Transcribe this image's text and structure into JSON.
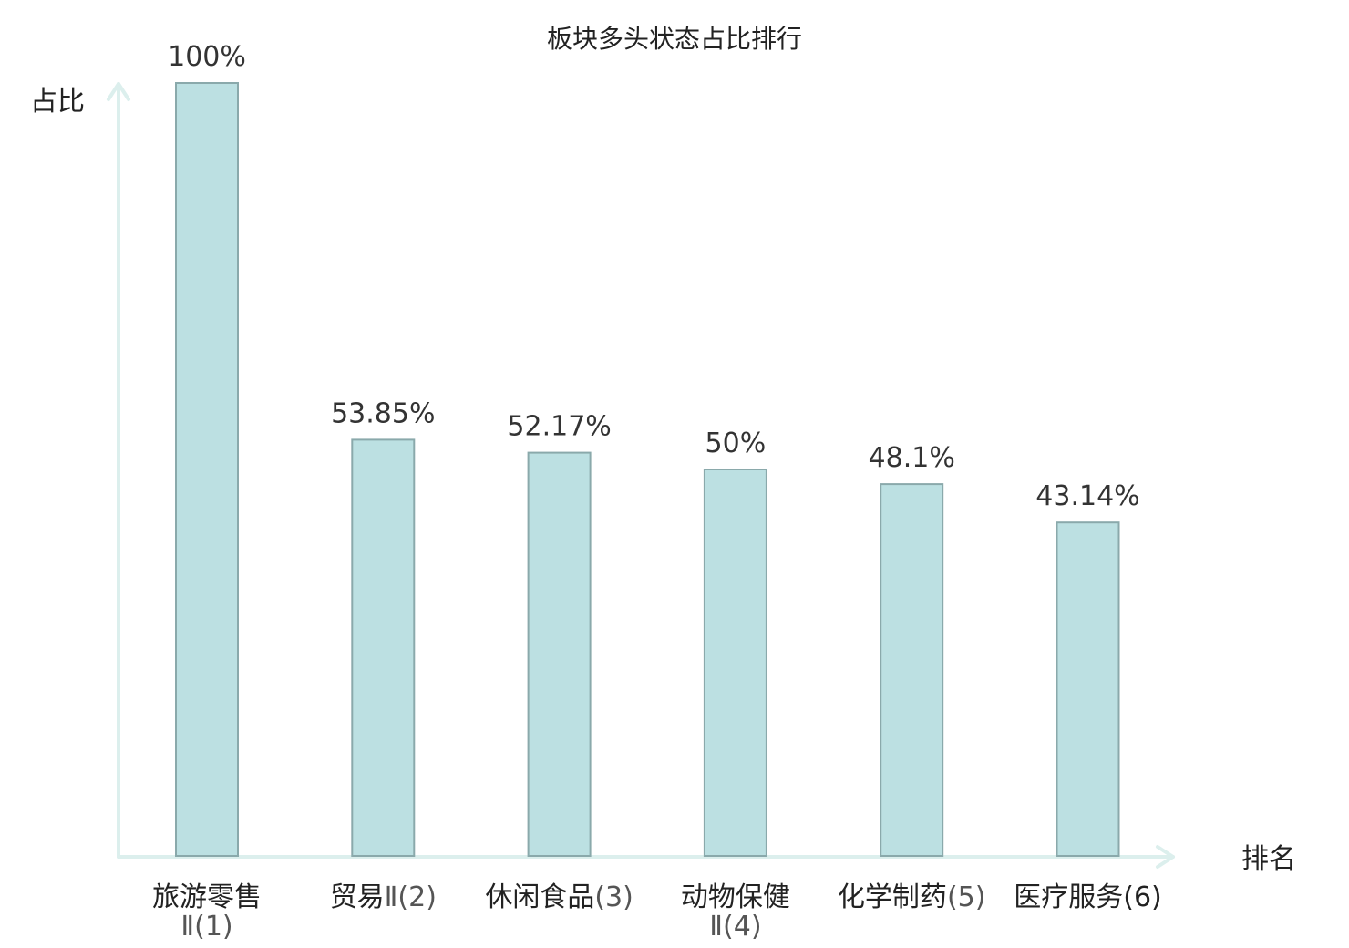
{
  "chart_data": {
    "type": "bar",
    "title": "板块多头状态占比排行",
    "xlabel": "排名",
    "ylabel": "占比",
    "ylim": [
      0,
      100
    ],
    "categories": [
      {
        "name": "旅游零售",
        "suffix": "Ⅱ",
        "rank": "(1)",
        "wrap": true,
        "highlight": false
      },
      {
        "name": "贸易",
        "suffix": "Ⅱ",
        "rank": "(2)",
        "wrap": false,
        "highlight": false
      },
      {
        "name": "休闲食品",
        "suffix": "",
        "rank": "(3)",
        "wrap": false,
        "highlight": false
      },
      {
        "name": "动物保健",
        "suffix": "Ⅱ",
        "rank": "(4)",
        "wrap": true,
        "highlight": false
      },
      {
        "name": "化学制药",
        "suffix": "",
        "rank": "(5)",
        "wrap": false,
        "highlight": false
      },
      {
        "name": "医疗服务",
        "suffix": "",
        "rank": "(6)",
        "wrap": false,
        "highlight": true
      }
    ],
    "values": [
      100,
      53.85,
      52.17,
      50,
      48.1,
      43.14
    ],
    "value_labels": [
      "100%",
      "53.85%",
      "52.17%",
      "50%",
      "48.1%",
      "43.14%"
    ],
    "grid": false,
    "legend": "none",
    "colors": {
      "bar_fill": "#bce0e2",
      "bar_stroke": "#8aa9ab",
      "axis": "#dcefed",
      "highlight": "#e0191b"
    }
  }
}
